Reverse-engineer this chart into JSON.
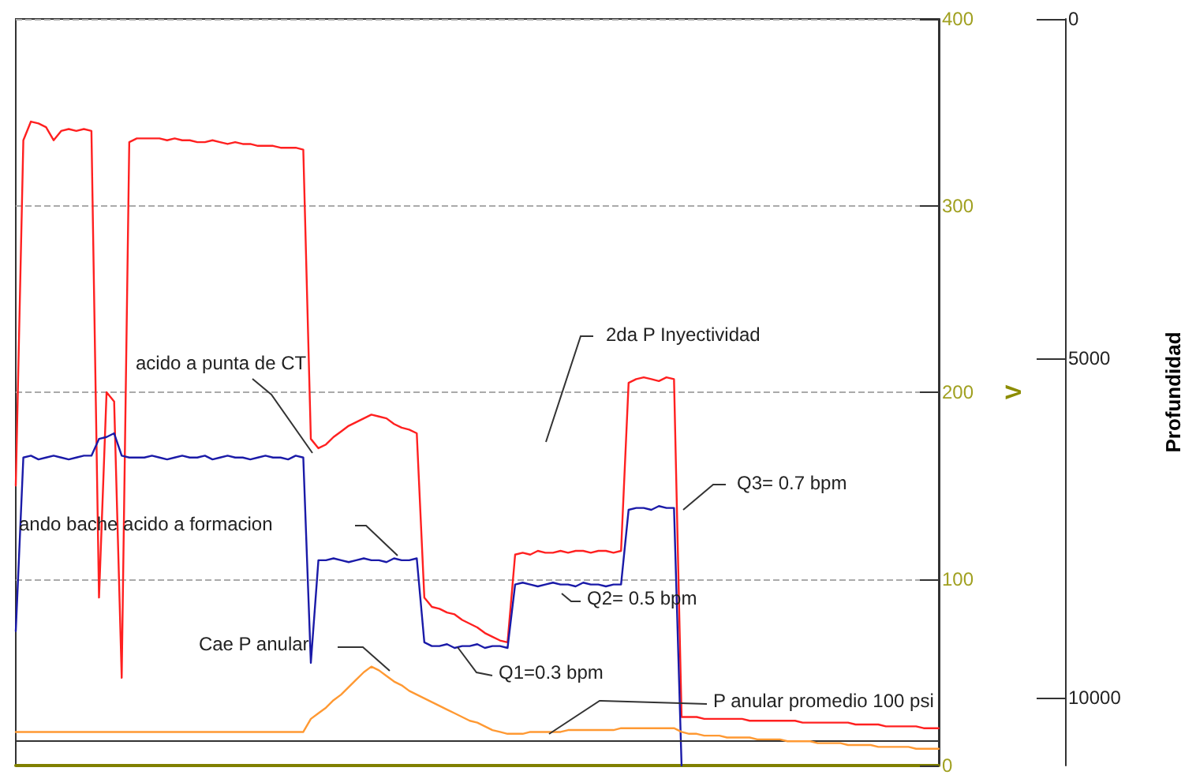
{
  "chart_data": {
    "type": "line",
    "ylabel": "V",
    "y2label": "Profundidad",
    "categories": [
      null,
      null,
      null,
      null,
      null,
      null,
      null,
      null,
      null,
      null,
      null,
      null,
      null,
      null,
      null,
      null,
      null,
      null,
      null,
      null,
      null,
      null,
      null,
      null,
      null,
      null,
      null,
      null,
      null,
      null,
      null,
      null,
      null,
      null,
      null,
      null,
      null,
      null,
      null,
      null,
      null,
      null,
      null,
      null,
      null,
      null,
      null,
      null,
      null,
      null,
      null,
      null,
      null,
      null,
      null,
      null,
      null,
      null,
      null,
      null,
      null,
      null,
      null,
      null,
      null,
      null,
      null,
      null,
      null,
      null,
      null,
      null,
      null,
      null,
      null,
      null,
      null,
      null,
      null,
      null,
      null,
      null,
      null,
      null,
      null,
      null,
      null,
      null,
      null,
      null,
      null,
      null,
      null,
      null,
      null,
      null,
      null,
      null,
      null,
      null,
      null,
      null,
      null,
      null,
      null,
      null,
      null,
      null,
      null,
      null,
      null,
      null,
      null,
      null,
      null,
      null,
      null,
      null,
      null,
      null,
      null,
      null,
      null
    ],
    "series": [
      {
        "color": "#ff2020",
        "values": [
          150,
          335,
          345,
          344,
          342,
          335,
          340,
          341,
          340,
          341,
          340,
          90,
          200,
          195,
          47,
          334,
          336,
          336,
          336,
          336,
          335,
          336,
          335,
          335,
          334,
          334,
          335,
          334,
          333,
          334,
          333,
          333,
          332,
          332,
          332,
          331,
          331,
          331,
          330,
          175,
          170,
          172,
          176,
          179,
          182,
          184,
          186,
          188,
          187,
          186,
          183,
          181,
          180,
          178,
          90,
          85,
          84,
          82,
          81,
          78,
          76,
          74,
          71,
          69,
          67,
          66,
          113,
          114,
          113,
          115,
          114,
          114,
          115,
          114,
          115,
          115,
          114,
          115,
          115,
          114,
          115,
          205,
          207,
          208,
          207,
          206,
          208,
          207,
          26,
          26,
          26,
          25,
          25,
          25,
          25,
          25,
          25,
          24,
          24,
          24,
          24,
          24,
          24,
          24,
          23,
          23,
          23,
          23,
          23,
          23,
          23,
          22,
          22,
          22,
          22,
          21,
          21,
          21,
          21,
          21,
          20,
          20,
          20
        ]
      },
      {
        "color": "#1a1aa8",
        "values": [
          72,
          165,
          166,
          164,
          165,
          166,
          165,
          164,
          165,
          166,
          166,
          175,
          176,
          178,
          166,
          165,
          165,
          165,
          166,
          165,
          164,
          165,
          166,
          165,
          165,
          166,
          164,
          165,
          166,
          165,
          165,
          164,
          165,
          166,
          165,
          165,
          164,
          166,
          165,
          55,
          110,
          110,
          111,
          110,
          109,
          110,
          111,
          110,
          110,
          109,
          111,
          110,
          110,
          111,
          66,
          64,
          64,
          65,
          63,
          64,
          64,
          65,
          63,
          64,
          64,
          63,
          97,
          98,
          97,
          96,
          97,
          98,
          97,
          97,
          96,
          98,
          97,
          97,
          96,
          97,
          97,
          137,
          138,
          138,
          137,
          139,
          138,
          138,
          0,
          null,
          null,
          null,
          null,
          null,
          null,
          null,
          null,
          null,
          null,
          null,
          null,
          null,
          null,
          null,
          null,
          null,
          null,
          null,
          null,
          null,
          null,
          null,
          null,
          null,
          null,
          null,
          null,
          null,
          null,
          null,
          null,
          null,
          null
        ]
      },
      {
        "color": "#ff9933",
        "values": [
          18,
          18,
          18,
          18,
          18,
          18,
          18,
          18,
          18,
          18,
          18,
          18,
          18,
          18,
          18,
          18,
          18,
          18,
          18,
          18,
          18,
          18,
          18,
          18,
          18,
          18,
          18,
          18,
          18,
          18,
          18,
          18,
          18,
          18,
          18,
          18,
          18,
          18,
          18,
          25,
          28,
          31,
          35,
          38,
          42,
          46,
          50,
          53,
          51,
          48,
          45,
          43,
          40,
          38,
          36,
          34,
          32,
          30,
          28,
          26,
          24,
          23,
          21,
          19,
          18,
          17,
          17,
          17,
          18,
          18,
          18,
          18,
          18,
          19,
          19,
          19,
          19,
          19,
          19,
          19,
          20,
          20,
          20,
          20,
          20,
          20,
          20,
          20,
          18,
          17,
          17,
          16,
          16,
          16,
          15,
          15,
          15,
          15,
          14,
          14,
          14,
          14,
          13,
          13,
          13,
          13,
          12,
          12,
          12,
          12,
          11,
          11,
          11,
          11,
          10,
          10,
          10,
          10,
          10,
          9,
          9,
          9,
          9
        ]
      }
    ],
    "ylim": [
      0,
      400
    ],
    "yticks": [
      0,
      100,
      200,
      300,
      400
    ],
    "y2lim": [
      11000,
      0
    ],
    "y2ticks": [
      0,
      5000,
      10000
    ],
    "ref_lines": [
      {
        "axis": "y",
        "value": 13,
        "color": "#333333"
      }
    ],
    "annotations": [
      "acido a punta de CT",
      "ando bache acido a formacion",
      "Cae P anular",
      "Q1=0.3 bpm",
      "Q2= 0.5 bpm",
      "Q3= 0.7 bpm",
      "2da P Inyectividad",
      "P anular promedio 100 psi"
    ],
    "grid": "y",
    "line_style": "solid",
    "tick_labels": "y"
  }
}
